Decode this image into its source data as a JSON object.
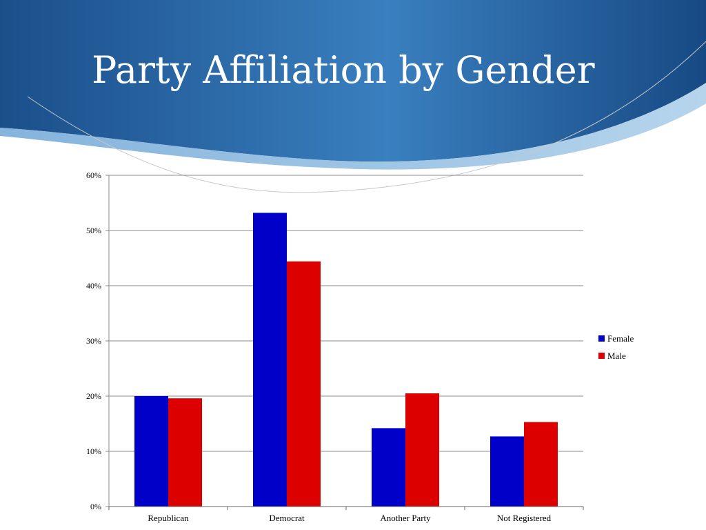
{
  "slide": {
    "title": "Party Affiliation by Gender"
  },
  "colors": {
    "banner_dark": "#1a4f8a",
    "banner_light": "#3f86c4",
    "female": "#0000c8",
    "male": "#dd0000",
    "grid": "#888888"
  },
  "chart_data": {
    "type": "bar",
    "categories": [
      "Republican",
      "Democrat",
      "Another Party",
      "Not Registered"
    ],
    "series": [
      {
        "name": "Female",
        "color": "#0000c8",
        "values": [
          20,
          53.2,
          14.2,
          12.7
        ]
      },
      {
        "name": "Male",
        "color": "#dd0000",
        "values": [
          19.6,
          44.4,
          20.5,
          15.3
        ]
      }
    ],
    "ylim": [
      0,
      60
    ],
    "yticks": [
      "0%",
      "10%",
      "20%",
      "30%",
      "40%",
      "50%",
      "60%"
    ],
    "ytick_values": [
      0,
      10,
      20,
      30,
      40,
      50,
      60
    ],
    "grid": true,
    "legend_position": "right",
    "xlabel": "",
    "ylabel": ""
  }
}
